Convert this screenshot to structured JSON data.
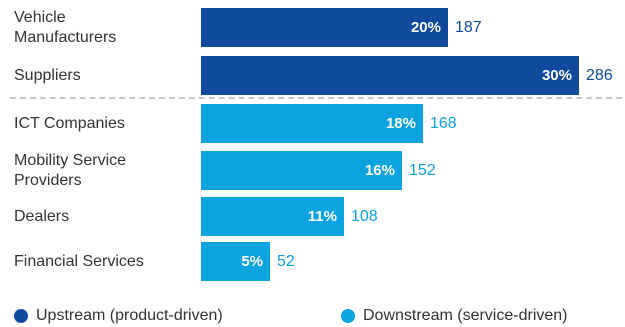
{
  "chart_data": {
    "type": "bar",
    "orientation": "horizontal",
    "categories": [
      "Vehicle\nManufacturers",
      "Suppliers",
      "ICT Companies",
      "Mobility Service\nProviders",
      "Dealers",
      "Financial Services"
    ],
    "values": [
      187,
      286,
      168,
      152,
      108,
      52
    ],
    "percent_labels": [
      "20%",
      "30%",
      "18%",
      "16%",
      "11%",
      "5%"
    ],
    "groups": [
      "upstream",
      "upstream",
      "downstream",
      "downstream",
      "downstream",
      "downstream"
    ],
    "legend": {
      "placement": "bottom",
      "entries": [
        {
          "key": "upstream",
          "label": "Upstream (product-driven)",
          "color": "#0f4a9c"
        },
        {
          "key": "downstream",
          "label": "Downstream (service-driven)",
          "color": "#0ba3e0"
        }
      ]
    },
    "divider": "dashed line between upstream and downstream groups",
    "xlim": [
      0,
      286
    ],
    "grid": false
  }
}
